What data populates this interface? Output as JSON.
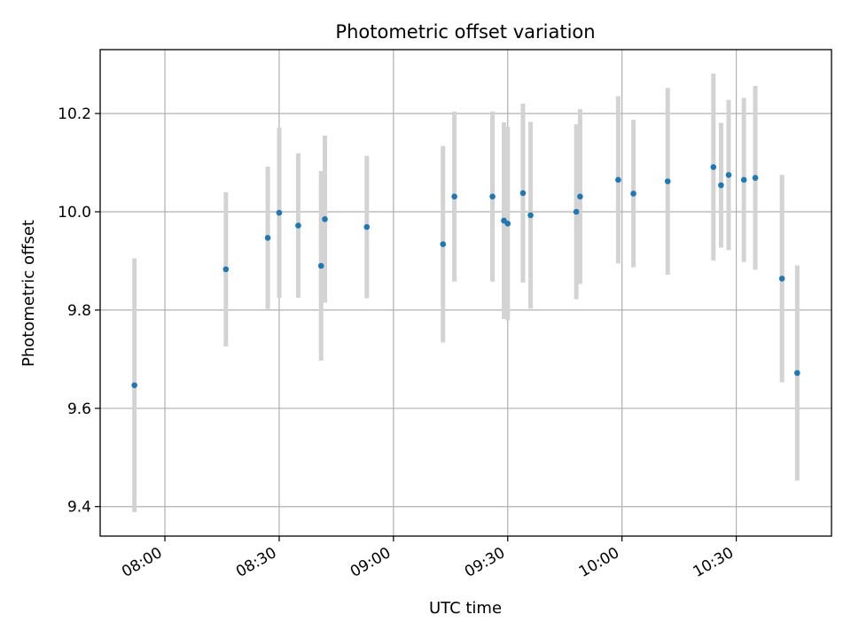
{
  "chart_data": {
    "type": "scatter",
    "title": "Photometric offset variation",
    "xlabel": "UTC time",
    "ylabel": "Photometric offset",
    "x_ticks": [
      "08:00",
      "08:30",
      "09:00",
      "09:30",
      "10:00",
      "10:30"
    ],
    "y_ticks": [
      "9.4",
      "9.6",
      "9.8",
      "10.0",
      "10.2"
    ],
    "xlim": [
      "07:43",
      "10:55"
    ],
    "ylim": [
      9.34,
      10.33
    ],
    "grid": true,
    "legend": "none",
    "colors": {
      "points": "#1f77b4",
      "errorbars": "#d3d3d3",
      "grid": "#b0b0b0"
    },
    "points": [
      {
        "x": "07:52",
        "y": 9.647,
        "err": 0.258
      },
      {
        "x": "08:16",
        "y": 9.883,
        "err": 0.157
      },
      {
        "x": "08:27",
        "y": 9.947,
        "err": 0.145
      },
      {
        "x": "08:30",
        "y": 9.998,
        "err": 0.173
      },
      {
        "x": "08:35",
        "y": 9.972,
        "err": 0.147
      },
      {
        "x": "08:41",
        "y": 9.89,
        "err": 0.193
      },
      {
        "x": "08:42",
        "y": 9.985,
        "err": 0.17
      },
      {
        "x": "08:53",
        "y": 9.969,
        "err": 0.145
      },
      {
        "x": "09:13",
        "y": 9.934,
        "err": 0.2
      },
      {
        "x": "09:16",
        "y": 10.031,
        "err": 0.173
      },
      {
        "x": "09:26",
        "y": 10.031,
        "err": 0.173
      },
      {
        "x": "09:29",
        "y": 9.982,
        "err": 0.2
      },
      {
        "x": "09:30",
        "y": 9.976,
        "err": 0.197
      },
      {
        "x": "09:34",
        "y": 10.038,
        "err": 0.182
      },
      {
        "x": "09:36",
        "y": 9.993,
        "err": 0.19
      },
      {
        "x": "09:48",
        "y": 10.0,
        "err": 0.178
      },
      {
        "x": "09:49",
        "y": 10.031,
        "err": 0.178
      },
      {
        "x": "09:59",
        "y": 10.065,
        "err": 0.17
      },
      {
        "x": "10:03",
        "y": 10.037,
        "err": 0.15
      },
      {
        "x": "10:12",
        "y": 10.062,
        "err": 0.19
      },
      {
        "x": "10:24",
        "y": 10.091,
        "err": 0.19
      },
      {
        "x": "10:26",
        "y": 10.054,
        "err": 0.127
      },
      {
        "x": "10:28",
        "y": 10.075,
        "err": 0.153
      },
      {
        "x": "10:32",
        "y": 10.065,
        "err": 0.167
      },
      {
        "x": "10:35",
        "y": 10.069,
        "err": 0.187
      },
      {
        "x": "10:42",
        "y": 9.864,
        "err": 0.211
      },
      {
        "x": "10:46",
        "y": 9.672,
        "err": 0.219
      }
    ]
  }
}
